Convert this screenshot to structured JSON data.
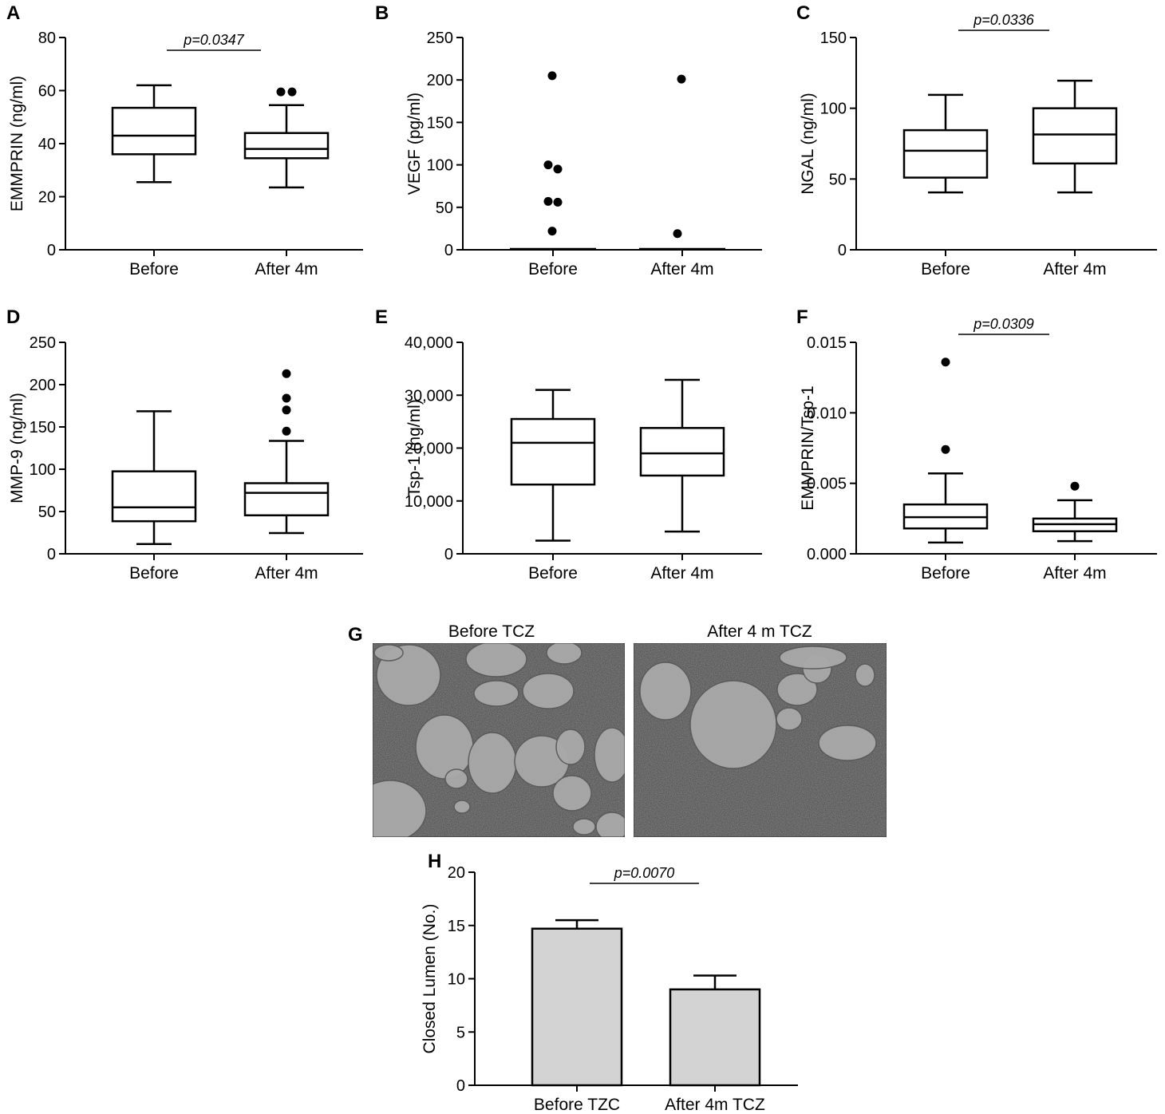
{
  "figure": {
    "panels": [
      {
        "letter": "A",
        "kind": "box"
      },
      {
        "letter": "B",
        "kind": "box"
      },
      {
        "letter": "C",
        "kind": "box"
      },
      {
        "letter": "D",
        "kind": "box"
      },
      {
        "letter": "E",
        "kind": "box"
      },
      {
        "letter": "F",
        "kind": "box"
      },
      {
        "letter": "G",
        "kind": "micrograph"
      },
      {
        "letter": "H",
        "kind": "bar"
      }
    ],
    "micrographs": {
      "left_title": "Before TCZ",
      "right_title": "After 4 m TCZ",
      "background_color": "#8c8c8c",
      "lumen_color": "#a9a9a9"
    }
  },
  "chart_data": [
    {
      "panel": "A",
      "type": "box",
      "ylabel": "EMMPRIN (ng/ml)",
      "ylim": [
        0,
        80
      ],
      "yticks": [
        0,
        20,
        40,
        60,
        80
      ],
      "ytick_labels": [
        "0",
        "20",
        "40",
        "60",
        "80"
      ],
      "categories": [
        "Before",
        "After 4m"
      ],
      "boxes": [
        {
          "min": 25.5,
          "q1": 36,
          "median": 43,
          "q3": 53.5,
          "max": 62,
          "outliers": []
        },
        {
          "min": 23.5,
          "q1": 34.5,
          "median": 38,
          "q3": 44,
          "max": 54.5,
          "outliers": [
            59.5,
            59.5
          ]
        }
      ],
      "significance": {
        "label": "p=0.0347",
        "between": [
          0,
          1
        ]
      }
    },
    {
      "panel": "B",
      "type": "box",
      "ylabel": "VEGF (pg/ml)",
      "ylim": [
        0,
        250
      ],
      "yticks": [
        0,
        50,
        100,
        150,
        200,
        250
      ],
      "ytick_labels": [
        "0",
        "50",
        "100",
        "150",
        "200",
        "250"
      ],
      "categories": [
        "Before",
        "After 4m"
      ],
      "boxes": [
        {
          "min": 0,
          "q1": 0,
          "median": 0,
          "q3": 0,
          "max": 0,
          "outliers": [
            22,
            56,
            57,
            95,
            100,
            205
          ]
        },
        {
          "min": 0,
          "q1": 0,
          "median": 0,
          "q3": 0,
          "max": 0,
          "outliers": [
            19,
            201
          ]
        }
      ]
    },
    {
      "panel": "C",
      "type": "box",
      "ylabel": "NGAL (ng/ml)",
      "ylim": [
        0,
        150
      ],
      "yticks": [
        0,
        50,
        100,
        150
      ],
      "ytick_labels": [
        "0",
        "50",
        "100",
        "150"
      ],
      "categories": [
        "Before",
        "After 4m"
      ],
      "boxes": [
        {
          "min": 40.5,
          "q1": 51,
          "median": 70,
          "q3": 84.5,
          "max": 109.5,
          "outliers": []
        },
        {
          "min": 40.5,
          "q1": 61,
          "median": 81.5,
          "q3": 100,
          "max": 119.5,
          "outliers": []
        }
      ],
      "significance": {
        "label": "p=0.0336",
        "between": [
          0,
          1
        ]
      }
    },
    {
      "panel": "D",
      "type": "box",
      "ylabel": "MMP-9 (ng/ml)",
      "ylim": [
        0,
        250
      ],
      "yticks": [
        0,
        50,
        100,
        150,
        200,
        250
      ],
      "ytick_labels": [
        "0",
        "50",
        "100",
        "150",
        "200",
        "250"
      ],
      "categories": [
        "Before",
        "After 4m"
      ],
      "boxes": [
        {
          "min": 11.5,
          "q1": 38.5,
          "median": 55,
          "q3": 97.5,
          "max": 168.5,
          "outliers": []
        },
        {
          "min": 24.5,
          "q1": 45.5,
          "median": 72,
          "q3": 83.5,
          "max": 133.5,
          "outliers": [
            145,
            170,
            184,
            213
          ]
        }
      ]
    },
    {
      "panel": "E",
      "type": "box",
      "ylabel": "Tsp-1 (ng/ml)",
      "ylim": [
        0,
        40000
      ],
      "yticks": [
        0,
        10000,
        20000,
        30000,
        40000
      ],
      "ytick_labels": [
        "0",
        "10,000",
        "20,000",
        "30,000",
        "40,000"
      ],
      "categories": [
        "Before",
        "After 4m"
      ],
      "boxes": [
        {
          "min": 2500,
          "q1": 13100,
          "median": 21000,
          "q3": 25500,
          "max": 31000,
          "outliers": []
        },
        {
          "min": 4200,
          "q1": 14800,
          "median": 19000,
          "q3": 23800,
          "max": 32900,
          "outliers": []
        }
      ]
    },
    {
      "panel": "F",
      "type": "box",
      "ylabel": "EMMPRIN/Tsp-1",
      "ylim": [
        0,
        0.015
      ],
      "yticks": [
        0,
        0.005,
        0.01,
        0.015
      ],
      "ytick_labels": [
        "0.000",
        "0.005",
        "0.010",
        "0.015"
      ],
      "categories": [
        "Before",
        "After 4m"
      ],
      "boxes": [
        {
          "min": 0.0008,
          "q1": 0.0018,
          "median": 0.0026,
          "q3": 0.0035,
          "max": 0.0057,
          "outliers": [
            0.0074,
            0.0136
          ]
        },
        {
          "min": 0.0009,
          "q1": 0.0016,
          "median": 0.0021,
          "q3": 0.0025,
          "max": 0.0038,
          "outliers": [
            0.0048
          ]
        }
      ],
      "significance": {
        "label": "p=0.0309",
        "between": [
          0,
          1
        ]
      }
    },
    {
      "panel": "H",
      "type": "bar",
      "ylabel": "Closed Lumen (No.)",
      "ylim": [
        0,
        20
      ],
      "yticks": [
        0,
        5,
        10,
        15,
        20
      ],
      "ytick_labels": [
        "0",
        "5",
        "10",
        "15",
        "20"
      ],
      "categories": [
        "Before TZC",
        "After 4m TCZ"
      ],
      "values": [
        14.7,
        9.0
      ],
      "errors": [
        0.8,
        1.3
      ],
      "bar_color": "#d3d3d3",
      "significance": {
        "label": "p=0.0070",
        "between": [
          0,
          1
        ]
      }
    }
  ]
}
